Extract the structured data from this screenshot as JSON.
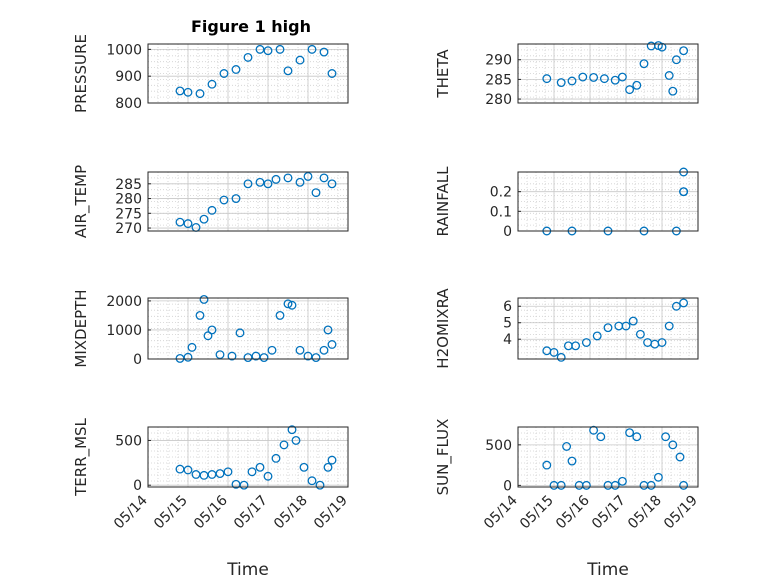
{
  "figure": {
    "title": "Figure 1 high",
    "xlabel": "Time",
    "date_tick_labels": [
      "05/14",
      "05/15",
      "05/16",
      "05/17",
      "05/18",
      "05/19"
    ],
    "marker_color": "#0072BD",
    "grid": "on (major + minor dotted)"
  },
  "chart_data": [
    {
      "type": "scatter",
      "name": "PRESSURE",
      "ylabel_lines": [
        "PRESSURE"
      ],
      "yticks": [
        "800",
        "900",
        "1000"
      ],
      "ylim": [
        800,
        1020
      ],
      "xlim": [
        "2015-05-14",
        "2015-05-19"
      ],
      "x": [
        "05-14.8",
        "05-15.0",
        "05-15.3",
        "05-15.6",
        "05-15.9",
        "05-16.2",
        "05-16.5",
        "05-16.8",
        "05-17.0",
        "05-17.3",
        "05-17.5",
        "05-17.8",
        "05-18.1",
        "05-18.4",
        "05-18.6"
      ],
      "y": [
        845,
        840,
        835,
        870,
        910,
        925,
        970,
        1000,
        995,
        1000,
        920,
        960,
        1000,
        990,
        910
      ]
    },
    {
      "type": "scatter",
      "name": "THETA",
      "ylabel_lines": [
        "THETA"
      ],
      "yticks": [
        "280",
        "285",
        "290"
      ],
      "ylim": [
        279,
        294
      ],
      "xlim": [
        "2015-05-14",
        "2015-05-19"
      ],
      "x": [
        "05-14.8",
        "05-15.2",
        "05-15.5",
        "05-15.8",
        "05-16.1",
        "05-16.4",
        "05-16.7",
        "05-16.9",
        "05-17.1",
        "05-17.3",
        "05-17.5",
        "05-17.7",
        "05-17.9",
        "05-18.0",
        "05-18.2",
        "05-18.3",
        "05-18.4",
        "05-18.6"
      ],
      "y": [
        285.2,
        284.2,
        284.6,
        285.6,
        285.5,
        285.2,
        284.8,
        285.6,
        282.4,
        283.5,
        289,
        293.5,
        293.6,
        293.2,
        286,
        282,
        290,
        292.3
      ]
    },
    {
      "type": "scatter",
      "name": "AIR_TEMP",
      "ylabel_lines": [
        "AIR_TEMP"
      ],
      "yticks": [
        "270",
        "275",
        "280",
        "285"
      ],
      "ylim": [
        269,
        289
      ],
      "xlim": [
        "2015-05-14",
        "2015-05-19"
      ],
      "x": [
        "05-14.8",
        "05-15.0",
        "05-15.2",
        "05-15.4",
        "05-15.6",
        "05-15.9",
        "05-16.2",
        "05-16.5",
        "05-16.8",
        "05-17.0",
        "05-17.2",
        "05-17.5",
        "05-17.8",
        "05-18.0",
        "05-18.2",
        "05-18.4",
        "05-18.6"
      ],
      "y": [
        272,
        271.5,
        270.2,
        273,
        276,
        279.5,
        280,
        285,
        285.5,
        285,
        286.5,
        287,
        285.5,
        287.5,
        282,
        287,
        285
      ]
    },
    {
      "type": "scatter",
      "name": "RAINFALL",
      "ylabel_lines": [
        "RAINFALL"
      ],
      "yticks": [
        "0",
        "0.1",
        "0.2"
      ],
      "ylim": [
        0,
        0.3
      ],
      "xlim": [
        "2015-05-14",
        "2015-05-19"
      ],
      "x": [
        "05-14.8",
        "05-15.5",
        "05-16.5",
        "05-17.5",
        "05-18.4",
        "05-18.6",
        "05-18.6",
        "05-18.6"
      ],
      "y": [
        0,
        0,
        0,
        0,
        0,
        0.2,
        0.3,
        0.2
      ]
    },
    {
      "type": "scatter",
      "name": "MIXDEPTH",
      "ylabel_lines": [
        "MIXDEPTH"
      ],
      "yticks": [
        "0",
        "1000",
        "2000"
      ],
      "ylim": [
        0,
        2100
      ],
      "xlim": [
        "2015-05-14",
        "2015-05-19"
      ],
      "x": [
        "05-14.8",
        "05-15.0",
        "05-15.1",
        "05-15.3",
        "05-15.4",
        "05-15.5",
        "05-15.6",
        "05-15.8",
        "05-16.1",
        "05-16.3",
        "05-16.5",
        "05-16.7",
        "05-16.9",
        "05-17.1",
        "05-17.3",
        "05-17.5",
        "05-17.6",
        "05-17.8",
        "05-18.0",
        "05-18.2",
        "05-18.4",
        "05-18.5",
        "05-18.6"
      ],
      "y": [
        20,
        60,
        400,
        1500,
        2050,
        800,
        1000,
        150,
        100,
        900,
        50,
        100,
        50,
        300,
        1500,
        1900,
        1850,
        300,
        100,
        50,
        300,
        1000,
        500
      ]
    },
    {
      "type": "scatter",
      "name": "H2OMIXRA",
      "ylabel_lines": [
        "H2OMIXRA"
      ],
      "yticks": [
        "4",
        "5",
        "6"
      ],
      "ylim": [
        2.8,
        6.5
      ],
      "xlim": [
        "2015-05-14",
        "2015-05-19"
      ],
      "x": [
        "05-14.8",
        "05-15.0",
        "05-15.2",
        "05-15.4",
        "05-15.6",
        "05-15.9",
        "05-16.2",
        "05-16.5",
        "05-16.8",
        "05-17.0",
        "05-17.2",
        "05-17.4",
        "05-17.6",
        "05-17.8",
        "05-18.0",
        "05-18.2",
        "05-18.4",
        "05-18.6"
      ],
      "y": [
        3.3,
        3.2,
        2.9,
        3.6,
        3.6,
        3.8,
        4.2,
        4.7,
        4.8,
        4.8,
        5.1,
        4.3,
        3.8,
        3.7,
        3.8,
        4.8,
        6.0,
        6.2
      ]
    },
    {
      "type": "scatter",
      "name": "TERR_MSL",
      "ylabel_lines": [
        "TERR_MSL"
      ],
      "yticks": [
        "0",
        "500"
      ],
      "ylim": [
        -20,
        650
      ],
      "xlim": [
        "2015-05-14",
        "2015-05-19"
      ],
      "x": [
        "05-14.8",
        "05-15.0",
        "05-15.2",
        "05-15.4",
        "05-15.6",
        "05-15.8",
        "05-16.0",
        "05-16.2",
        "05-16.4",
        "05-16.6",
        "05-16.8",
        "05-17.0",
        "05-17.2",
        "05-17.4",
        "05-17.6",
        "05-17.7",
        "05-17.9",
        "05-18.1",
        "05-18.3",
        "05-18.5",
        "05-18.6"
      ],
      "y": [
        180,
        170,
        120,
        110,
        120,
        130,
        150,
        10,
        0,
        150,
        200,
        100,
        300,
        450,
        620,
        500,
        200,
        50,
        0,
        200,
        280
      ]
    },
    {
      "type": "scatter",
      "name": "SUN_FLUX",
      "ylabel_lines": [
        "SUN_FLUX"
      ],
      "yticks": [
        "0",
        "500"
      ],
      "ylim": [
        -20,
        720
      ],
      "xlim": [
        "2015-05-14",
        "2015-05-19"
      ],
      "x": [
        "05-14.8",
        "05-15.0",
        "05-15.2",
        "05-15.35",
        "05-15.5",
        "05-15.7",
        "05-15.9",
        "05-16.1",
        "05-16.3",
        "05-16.5",
        "05-16.7",
        "05-16.9",
        "05-17.1",
        "05-17.3",
        "05-17.5",
        "05-17.7",
        "05-17.9",
        "05-18.1",
        "05-18.3",
        "05-18.5",
        "05-18.6"
      ],
      "y": [
        250,
        0,
        0,
        480,
        300,
        0,
        0,
        680,
        600,
        0,
        0,
        50,
        650,
        600,
        0,
        0,
        100,
        600,
        500,
        350,
        0
      ]
    }
  ]
}
